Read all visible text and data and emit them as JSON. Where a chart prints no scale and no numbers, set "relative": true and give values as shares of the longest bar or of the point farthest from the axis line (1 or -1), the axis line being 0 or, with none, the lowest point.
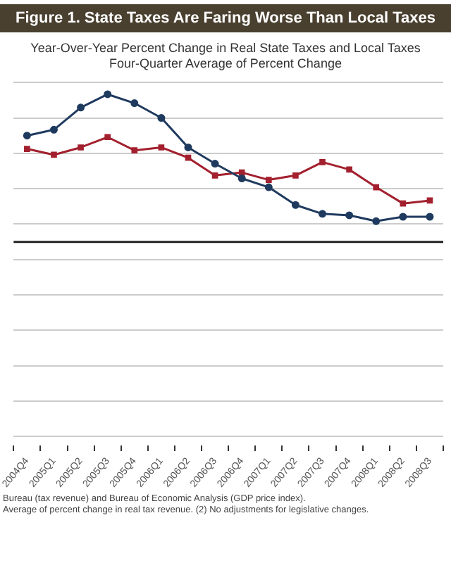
{
  "chart_data": {
    "type": "line",
    "title": "Figure 1. State Taxes Are Faring Worse Than Local Taxes",
    "subtitle": "Year-Over-Year Percent Change in Real State Taxes and Local Taxes\nFour-Quarter Average of Percent Change",
    "categories": [
      "2004Q4",
      "2005Q1",
      "2005Q2",
      "2005Q3",
      "2005Q4",
      "2006Q1",
      "2006Q2",
      "2006Q3",
      "2006Q4",
      "2007Q1",
      "2007Q2",
      "2007Q3",
      "2007Q4",
      "2008Q1",
      "2008Q2",
      "2008Q3"
    ],
    "relative": true,
    "grid": "y",
    "legend": false,
    "line_style": "solid",
    "series": [
      {
        "color": "#1f3a5f",
        "marker": "circle",
        "values": [
          0.72,
          0.76,
          0.91,
          1,
          0.94,
          0.84,
          0.64,
          0.53,
          0.43,
          0.37,
          0.25,
          0.19,
          0.18,
          0.14,
          0.17,
          0.17
        ]
      },
      {
        "color": "#a3202e",
        "marker": "square",
        "values": [
          0.63,
          0.59,
          0.64,
          0.71,
          0.62,
          0.64,
          0.57,
          0.45,
          0.47,
          0.42,
          0.45,
          0.54,
          0.49,
          0.37,
          0.26,
          0.28
        ]
      }
    ],
    "annotations": [
      "Bureau (tax revenue) and Bureau of Economic Analysis (GDP price index).",
      "Average of percent change in real tax revenue. (2) No adjustments for legislative changes."
    ]
  }
}
